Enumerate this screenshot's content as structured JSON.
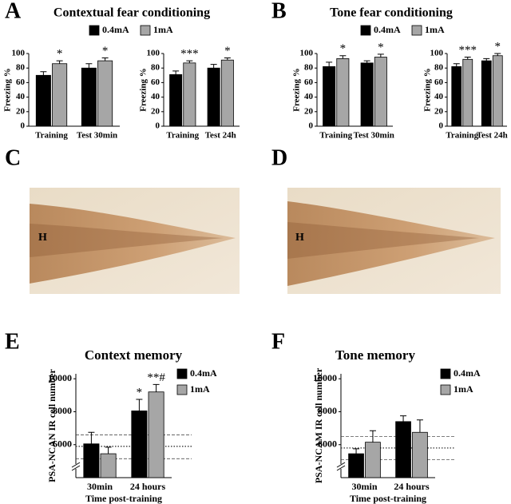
{
  "panel_letters": [
    "A",
    "B",
    "C",
    "D",
    "E",
    "F"
  ],
  "images": [
    {
      "label": "H"
    },
    {
      "label": "H"
    }
  ],
  "chart_data": [
    {
      "type": "bar",
      "title": "Contextual fear conditioning",
      "ylabel": "Freezing %",
      "categories": [
        "Training",
        "Test 30min"
      ],
      "ylim": [
        0,
        100
      ],
      "yticks": [
        0,
        20,
        40,
        60,
        80,
        100
      ],
      "series": [
        {
          "name": "0.4mA",
          "color": "#000000",
          "values": [
            70,
            80
          ],
          "errors": [
            5,
            6
          ]
        },
        {
          "name": "1mA",
          "color": "#a6a6a6",
          "values": [
            86,
            90
          ],
          "errors": [
            4,
            4
          ],
          "annotations": [
            "*",
            "*"
          ]
        }
      ]
    },
    {
      "type": "bar",
      "ylabel": "Freezing %",
      "categories": [
        "Training",
        "Test 24h"
      ],
      "ylim": [
        0,
        100
      ],
      "yticks": [
        0,
        20,
        40,
        60,
        80,
        100
      ],
      "series": [
        {
          "color": "#000000",
          "values": [
            71,
            80
          ],
          "errors": [
            5,
            5
          ]
        },
        {
          "color": "#a6a6a6",
          "values": [
            87,
            91
          ],
          "errors": [
            3,
            3
          ],
          "annotations": [
            "***",
            "*"
          ]
        }
      ]
    },
    {
      "type": "bar",
      "title": "Tone fear conditioning",
      "ylabel": "Freezing %",
      "categories": [
        "Training",
        "Test 30min"
      ],
      "ylim": [
        0,
        100
      ],
      "yticks": [
        0,
        20,
        40,
        60,
        80,
        100
      ],
      "series": [
        {
          "name": "0.4mA",
          "color": "#000000",
          "values": [
            82,
            87
          ],
          "errors": [
            6,
            3
          ]
        },
        {
          "name": "1mA",
          "color": "#a6a6a6",
          "values": [
            93,
            95
          ],
          "errors": [
            4,
            4
          ],
          "annotations": [
            "*",
            "*"
          ]
        }
      ]
    },
    {
      "type": "bar",
      "ylabel": "Freezing %",
      "categories": [
        "Training",
        "Test 24h"
      ],
      "ylim": [
        0,
        100
      ],
      "yticks": [
        0,
        20,
        40,
        60,
        80,
        100
      ],
      "series": [
        {
          "color": "#000000",
          "values": [
            82,
            90
          ],
          "errors": [
            4,
            3
          ]
        },
        {
          "color": "#a6a6a6",
          "values": [
            92,
            97
          ],
          "errors": [
            3,
            3
          ],
          "annotations": [
            "***",
            "*"
          ]
        }
      ]
    },
    {
      "type": "bar",
      "title": "Context memory",
      "ylabel": "PSA-NCAN IR cell number",
      "xlabel": "Time post-training",
      "categories": [
        "30min",
        "24 hours"
      ],
      "ylim": [
        4000,
        10300
      ],
      "yticks": [
        6000,
        8000,
        10000
      ],
      "axis_break": true,
      "reference_lines": [
        {
          "value": 6600,
          "style": "dashed"
        },
        {
          "value": 5900,
          "style": "dotted"
        },
        {
          "value": 5150,
          "style": "dashed"
        }
      ],
      "series": [
        {
          "name": "0.4mA",
          "color": "#000000",
          "values": [
            6050,
            8050
          ],
          "errors": [
            700,
            700
          ],
          "annotations": [
            null,
            "*"
          ]
        },
        {
          "name": "1mA",
          "color": "#a6a6a6",
          "values": [
            5450,
            9200
          ],
          "errors": [
            400,
            450
          ],
          "annotations": [
            null,
            "**#"
          ]
        }
      ]
    },
    {
      "type": "bar",
      "title": "Tone memory",
      "ylabel": "PSA-NCAM IR cell number",
      "xlabel": "Time post-training",
      "categories": [
        "30min",
        "24 hours"
      ],
      "ylim": [
        4000,
        10300
      ],
      "yticks": [
        6000,
        8000,
        10000
      ],
      "axis_break": true,
      "reference_lines": [
        {
          "value": 6500,
          "style": "dashed"
        },
        {
          "value": 5800,
          "style": "dotted"
        },
        {
          "value": 5100,
          "style": "dashed"
        }
      ],
      "series": [
        {
          "name": "0.4mA",
          "color": "#000000",
          "values": [
            5450,
            7400
          ],
          "errors": [
            300,
            350
          ]
        },
        {
          "name": "1mA",
          "color": "#a6a6a6",
          "values": [
            6150,
            6750
          ],
          "errors": [
            700,
            750
          ]
        }
      ]
    }
  ]
}
